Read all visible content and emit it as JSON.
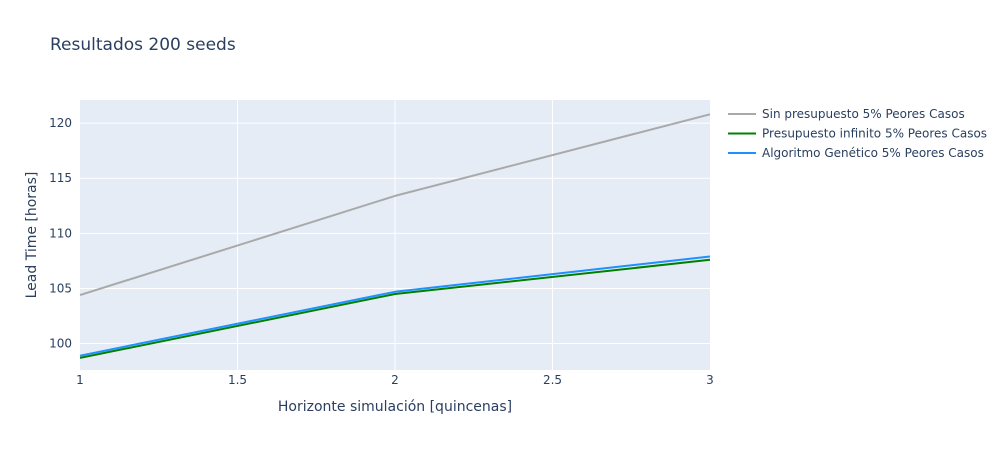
{
  "chart_data": {
    "type": "line",
    "title": "Resultados 200 seeds",
    "xlabel": "Horizonte simulación [quincenas]",
    "ylabel": "Lead Time [horas]",
    "xlim": [
      1,
      3
    ],
    "ylim": [
      97.6,
      122.1
    ],
    "x_ticks": [
      1,
      1.5,
      2,
      2.5,
      3
    ],
    "y_ticks": [
      100,
      105,
      110,
      115,
      120
    ],
    "grid": true,
    "legend_position": "right",
    "x": [
      1,
      2,
      3
    ],
    "series": [
      {
        "name": "Sin presupuesto 5% Peores Casos",
        "color": "#a9a9a9",
        "values": [
          104.4,
          113.4,
          120.8
        ]
      },
      {
        "name": "Presupuesto infinito 5% Peores Casos",
        "color": "#008000",
        "values": [
          98.7,
          104.5,
          107.6
        ]
      },
      {
        "name": "Algoritmo Genético 5% Peores Casos",
        "color": "#1e90ff",
        "values": [
          98.9,
          104.7,
          107.9
        ]
      }
    ]
  },
  "colors": {
    "plot_background": "#e5ecf6",
    "grid": "#ffffff",
    "text": "#2a3f5f"
  }
}
